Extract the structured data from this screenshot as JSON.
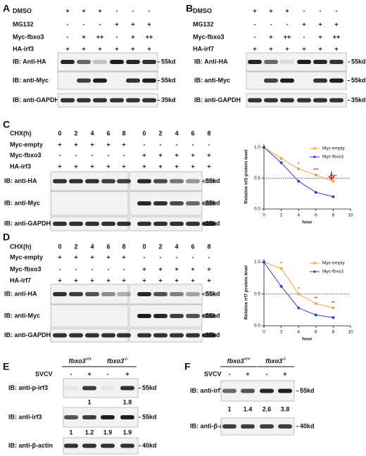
{
  "panels": {
    "A": {
      "label": "A",
      "conditions": [
        {
          "name": "DMSO",
          "lanes": [
            "+",
            "+",
            "+",
            "-",
            "-",
            "-"
          ]
        },
        {
          "name": "MG132",
          "lanes": [
            "-",
            "-",
            "-",
            "+",
            "+",
            "+"
          ]
        },
        {
          "name": "Myc-fbxo3",
          "lanes": [
            "-",
            "+",
            "++",
            "-",
            "+",
            "++"
          ]
        },
        {
          "name": "HA-irf3",
          "lanes": [
            "+",
            "+",
            "+",
            "+",
            "+",
            "+"
          ]
        }
      ],
      "blots": [
        {
          "label": "IB: Anti-HA",
          "marker": "55kd"
        },
        {
          "label": "IB: anti-Myc",
          "marker": "55kd"
        },
        {
          "label": "IB: anti-GAPDH",
          "marker": "35kd"
        }
      ]
    },
    "B": {
      "label": "B",
      "conditions": [
        {
          "name": "DMSO",
          "lanes": [
            "+",
            "+",
            "+",
            "-",
            "-",
            "-"
          ]
        },
        {
          "name": "MG132",
          "lanes": [
            "-",
            "-",
            "-",
            "+",
            "+",
            "+"
          ]
        },
        {
          "name": "Myc-fbxo3",
          "lanes": [
            "-",
            "+",
            "++",
            "-",
            "+",
            "++"
          ]
        },
        {
          "name": "HA-irf7",
          "lanes": [
            "+",
            "+",
            "+",
            "+",
            "+",
            "+"
          ]
        }
      ],
      "blots": [
        {
          "label": "IB: Anti-HA",
          "marker": "55kd"
        },
        {
          "label": "IB: anti-Myc",
          "marker": "55kd"
        },
        {
          "label": "IB: anti-GAPDH",
          "marker": "35kd"
        }
      ]
    },
    "C": {
      "label": "C",
      "conditions": [
        {
          "name": "CHX(h)",
          "lanes": [
            0,
            2,
            4,
            6,
            8,
            0,
            2,
            4,
            6,
            8
          ]
        },
        {
          "name": "Myc-empty",
          "lanes": [
            "+",
            "+",
            "+",
            "+",
            "+",
            "-",
            "-",
            "-",
            "-",
            "-"
          ]
        },
        {
          "name": "Myc-fbxo3",
          "lanes": [
            "-",
            "-",
            "-",
            "-",
            "-",
            "+",
            "+",
            "+",
            "+",
            "+"
          ]
        },
        {
          "name": "HA-irf3",
          "lanes": [
            "+",
            "+",
            "+",
            "+",
            "+",
            "+",
            "+",
            "+",
            "+",
            "+"
          ]
        }
      ],
      "blots": [
        {
          "label": "IB: anti-HA",
          "marker": "55kd"
        },
        {
          "label": "IB: anti-Myc",
          "marker": "55kd"
        },
        {
          "label": "IB: anti-GAPDH",
          "marker": "35kd"
        }
      ]
    },
    "D": {
      "label": "D",
      "conditions": [
        {
          "name": "CHX(h)",
          "lanes": [
            0,
            2,
            4,
            6,
            8,
            0,
            2,
            4,
            6,
            8
          ]
        },
        {
          "name": "Myc-empty",
          "lanes": [
            "+",
            "+",
            "+",
            "+",
            "+",
            "-",
            "-",
            "-",
            "-",
            "-"
          ]
        },
        {
          "name": "Myc-fbxo3",
          "lanes": [
            "-",
            "-",
            "-",
            "-",
            "-",
            "+",
            "+",
            "+",
            "+",
            "+"
          ]
        },
        {
          "name": "HA-irf7",
          "lanes": [
            "+",
            "+",
            "+",
            "+",
            "+",
            "+",
            "+",
            "+",
            "+",
            "+"
          ]
        }
      ],
      "blots": [
        {
          "label": "IB: anti-HA",
          "marker": "55kd"
        },
        {
          "label": "IB: anti-Myc",
          "marker": "55kd"
        },
        {
          "label": "IB: anti-GAPDH",
          "marker": "35kd"
        }
      ]
    },
    "E": {
      "label": "E",
      "groups": [
        {
          "gene": "fbxo3",
          "genotype": "+/+"
        },
        {
          "gene": "fbxo3",
          "genotype": "-/-"
        }
      ],
      "conditions": [
        {
          "name": "SVCV",
          "lanes": [
            "-",
            "+",
            "-",
            "+"
          ]
        }
      ],
      "blots": [
        {
          "label": "IB: anti-p-irf3",
          "marker": "55kd",
          "quant": [
            null,
            1,
            null,
            1.8
          ]
        },
        {
          "label": "IB: anti-irf3",
          "marker": "55kd",
          "quant": [
            1,
            1.2,
            1.9,
            1.9
          ]
        },
        {
          "label": "IB:  anti-β-actin",
          "marker": "40kd"
        }
      ]
    },
    "F": {
      "label": "F",
      "groups": [
        {
          "gene": "fbxo3",
          "genotype": "+/+"
        },
        {
          "gene": "fbxo3",
          "genotype": "-/-"
        }
      ],
      "conditions": [
        {
          "name": "SVCV",
          "lanes": [
            "-",
            "+",
            "-",
            "+"
          ]
        }
      ],
      "blots": [
        {
          "label": "IB: anti-irf7",
          "marker": "55kd",
          "quant": [
            1,
            1.4,
            2.6,
            3.8
          ]
        },
        {
          "label": "IB:  anti-β-actin",
          "marker": "40kd"
        }
      ]
    }
  },
  "chart_data": [
    {
      "type": "line",
      "ylabel": "Relative irf3 protein level",
      "xlabel": "hour",
      "x": [
        0,
        2,
        4,
        6,
        8
      ],
      "series": [
        {
          "name": "Myc-empty",
          "color": "#f3a23c",
          "values": [
            1.0,
            0.82,
            0.65,
            0.55,
            0.45
          ]
        },
        {
          "name": "Myc-fbxo3",
          "color": "#3b3bc6",
          "values": [
            1.0,
            0.75,
            0.45,
            0.27,
            0.2
          ]
        }
      ],
      "xlim": [
        0,
        10
      ],
      "ylim": [
        0,
        1.05
      ],
      "xticks": [
        0,
        2,
        4,
        6,
        8,
        10
      ],
      "yticks": [
        {
          "value": 0,
          "label": "0.0"
        },
        {
          "value": 0.5,
          "label": "0.5"
        },
        {
          "value": 1,
          "label": "1.0"
        }
      ],
      "reference_line": 0.5,
      "annotations": [
        {
          "x": 4,
          "text": "*"
        },
        {
          "x": 6,
          "text": "***"
        },
        {
          "x": 8,
          "text": "****"
        }
      ],
      "legend": "upper right"
    },
    {
      "type": "line",
      "ylabel": "Relative irf7 protein level",
      "xlabel": "hour",
      "x": [
        0,
        2,
        4,
        6,
        8
      ],
      "series": [
        {
          "name": "Myc-empty",
          "color": "#f3a23c",
          "values": [
            1.0,
            0.9,
            0.5,
            0.35,
            0.28
          ]
        },
        {
          "name": "Myc-fbxo3",
          "color": "#3b3bc6",
          "values": [
            1.0,
            0.62,
            0.28,
            0.17,
            0.13
          ]
        }
      ],
      "xlim": [
        0,
        10
      ],
      "ylim": [
        0,
        1.05
      ],
      "xticks": [
        0,
        2,
        4,
        6,
        8,
        10
      ],
      "yticks": [
        {
          "value": 0,
          "label": "0.0"
        },
        {
          "value": 0.5,
          "label": "0.5"
        },
        {
          "value": 1,
          "label": "1.0"
        }
      ],
      "reference_line": 0.5,
      "annotations": [
        {
          "x": 2,
          "text": "*"
        },
        {
          "x": 4,
          "text": "*"
        },
        {
          "x": 6,
          "text": "**"
        },
        {
          "x": 8,
          "text": "**"
        }
      ],
      "legend": "upper right"
    }
  ]
}
